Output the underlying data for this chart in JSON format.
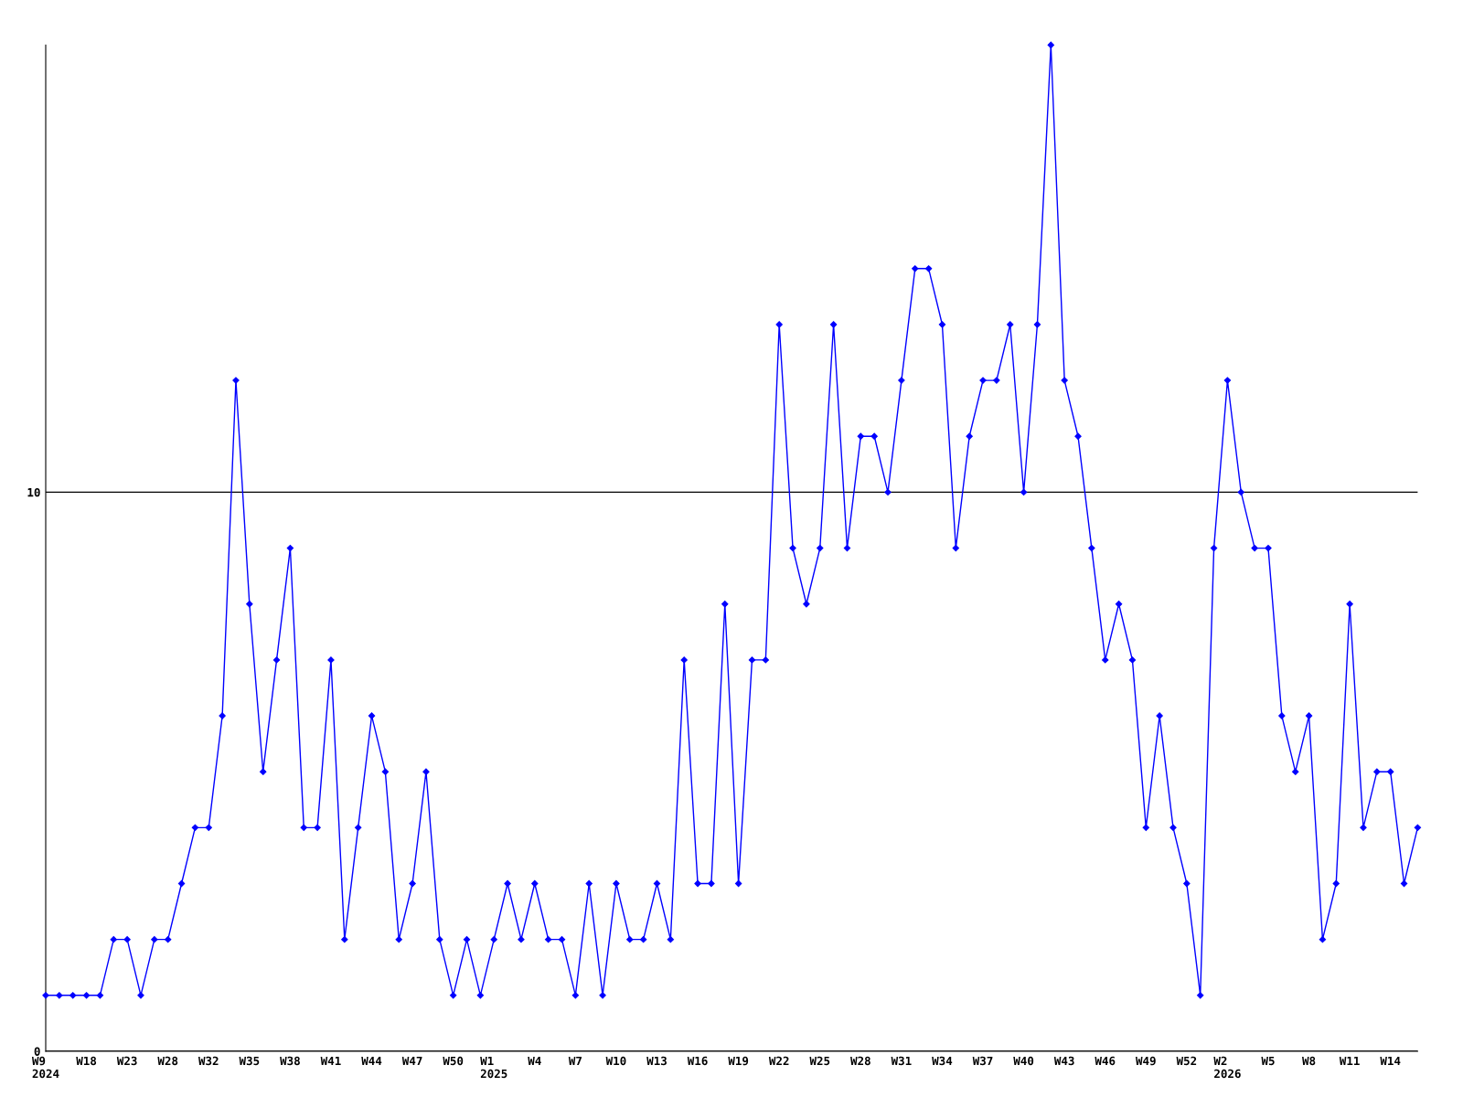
{
  "chart_data": {
    "type": "line",
    "categories": [
      "W9\n2024",
      null,
      null,
      "W18",
      null,
      null,
      "W23",
      null,
      null,
      "W28",
      null,
      null,
      "W32",
      null,
      null,
      "W35",
      null,
      null,
      "W38",
      null,
      null,
      "W41",
      null,
      null,
      "W44",
      null,
      null,
      "W47",
      null,
      null,
      "W50",
      null,
      null,
      "W1\n2025",
      null,
      null,
      "W4",
      null,
      null,
      "W7",
      null,
      null,
      "W10",
      null,
      null,
      "W13",
      null,
      null,
      "W16",
      null,
      null,
      "W19",
      null,
      null,
      "W22",
      null,
      null,
      "W25",
      null,
      null,
      "W28",
      null,
      null,
      "W31",
      null,
      null,
      "W34",
      null,
      null,
      "W37",
      null,
      null,
      "W40",
      null,
      null,
      "W43",
      null,
      null,
      "W46",
      null,
      null,
      "W49",
      null,
      null,
      "W52",
      null,
      null,
      "W2\n2026",
      null,
      null,
      "W5",
      null,
      null,
      "W8",
      null,
      null,
      "W11",
      null,
      null,
      "W14",
      null,
      null
    ],
    "series": [
      {
        "color": "#0000ff",
        "values": [
          1,
          1,
          1,
          1,
          1,
          2,
          2,
          1,
          2,
          2,
          3,
          4,
          4,
          6,
          12,
          8,
          5,
          7,
          9,
          4,
          4,
          7,
          2,
          4,
          6,
          5,
          2,
          3,
          5,
          2,
          1,
          2,
          1,
          2,
          3,
          2,
          3,
          2,
          2,
          1,
          3,
          1,
          3,
          2,
          2,
          3,
          2,
          7,
          3,
          3,
          8,
          3,
          7,
          7,
          13,
          9,
          8,
          9,
          13,
          9,
          11,
          11,
          10,
          12,
          14,
          14,
          13,
          9,
          11,
          12,
          12,
          13,
          10,
          13,
          18,
          12,
          11,
          9,
          7,
          8,
          7,
          4,
          6,
          4,
          3,
          1,
          9,
          12,
          10,
          9,
          9,
          6,
          5,
          6,
          2,
          3,
          8,
          4,
          5,
          5,
          3,
          4
        ]
      }
    ],
    "ylim": [
      0,
      18
    ],
    "yticks": [
      0,
      10
    ],
    "grid": "y",
    "marker": "diamond",
    "line_style": "solid"
  }
}
